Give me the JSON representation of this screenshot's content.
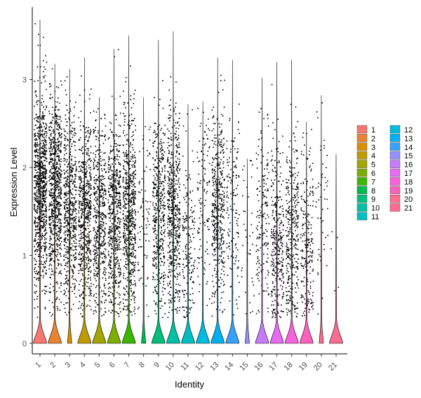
{
  "chart_data": {
    "type": "violin",
    "xlabel": "Identity",
    "ylabel": "Expression Level",
    "ylim": [
      -0.1,
      3.8
    ],
    "yticks": [
      0,
      1,
      2,
      3
    ],
    "categories": [
      "1",
      "2",
      "3",
      "4",
      "5",
      "6",
      "7",
      "8",
      "9",
      "10",
      "11",
      "12",
      "13",
      "14",
      "15",
      "16",
      "17",
      "18",
      "19",
      "20",
      "21"
    ],
    "colors": [
      "#F8766D",
      "#EA8331",
      "#D89000",
      "#C09B00",
      "#A3A500",
      "#7CAE00",
      "#39B600",
      "#00BB4E",
      "#00BF7D",
      "#00C1A3",
      "#00BFC4",
      "#00BAE0",
      "#00B0F6",
      "#35A2FF",
      "#9590FF",
      "#C77CFF",
      "#E76BF3",
      "#FA62DB",
      "#FF62BC",
      "#FF6C91",
      "#FF6C91"
    ],
    "max_values": [
      3.68,
      3.18,
      3.12,
      3.25,
      2.8,
      3.35,
      3.5,
      2.8,
      3.45,
      3.55,
      2.72,
      2.75,
      3.25,
      3.22,
      2.1,
      3.02,
      3.2,
      3.22,
      2.52,
      2.82,
      2.15
    ],
    "point_counts": [
      900,
      750,
      550,
      600,
      500,
      550,
      650,
      80,
      450,
      550,
      180,
      120,
      450,
      140,
      40,
      170,
      320,
      350,
      220,
      50,
      5
    ],
    "point_center": [
      1.75,
      1.7,
      1.5,
      1.45,
      1.4,
      1.45,
      1.45,
      1.4,
      1.45,
      1.5,
      1.1,
      1.7,
      1.55,
      1.6,
      1.3,
      1.4,
      1.2,
      1.25,
      1.1,
      1.5,
      0.9
    ],
    "legend": {
      "col1": [
        "1",
        "2",
        "3",
        "4",
        "5",
        "6",
        "7",
        "8",
        "9",
        "10",
        "11"
      ],
      "col2": [
        "12",
        "13",
        "14",
        "15",
        "16",
        "17",
        "18",
        "19",
        "20",
        "21"
      ]
    }
  }
}
